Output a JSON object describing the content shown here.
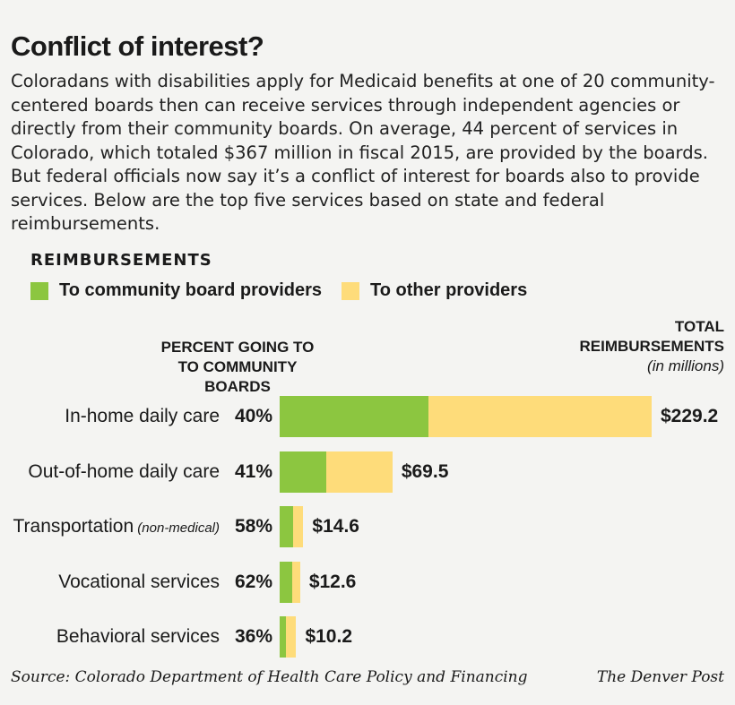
{
  "title": "Conflict of interest?",
  "intro": "Coloradans with disabilities apply for Medicaid benefits at one of 20 community-centered boards then can receive services through independent agencies or directly from their community boards. On average, 44 percent of services in Colorado, which totaled $367 million in fiscal 2015, are provided by the boards. But federal officials now say it’s a conflict of interest for boards also to provide services. Below are the top five services based on state and federal reimbursements.",
  "section_label": "REIMBURSEMENTS",
  "legend": {
    "community": "To community board providers",
    "other": "To other providers"
  },
  "headers": {
    "percent_line1": "PERCENT GOING TO",
    "percent_line2": "TO COMMUNITY BOARDS",
    "total_line1": "TOTAL",
    "total_line2": "REIMBURSEMENTS",
    "total_unit": "(in millions)"
  },
  "colors": {
    "community": "#8cc640",
    "other": "#fedc7a"
  },
  "chart_data": {
    "type": "bar",
    "orientation": "horizontal",
    "stacked": true,
    "categories": [
      "In-home daily care",
      "Out-of-home daily care",
      "Transportation",
      "Vocational services",
      "Behavioral services"
    ],
    "category_notes": [
      "",
      "",
      "(non-medical)",
      "",
      ""
    ],
    "totals": [
      229.2,
      69.5,
      14.6,
      12.6,
      10.2
    ],
    "total_labels": [
      "$229.2",
      "$69.5",
      "$14.6",
      "$12.6",
      "$10.2"
    ],
    "percent_to_community": [
      40,
      41,
      58,
      62,
      36
    ],
    "percent_labels": [
      "40%",
      "41%",
      "58%",
      "62%",
      "36%"
    ],
    "series": [
      {
        "name": "To community board providers",
        "values": [
          91.68,
          28.5,
          8.47,
          7.81,
          3.67
        ]
      },
      {
        "name": "To other providers",
        "values": [
          137.52,
          41.0,
          6.13,
          4.79,
          6.53
        ]
      }
    ]
  },
  "source": "Source: Colorado Department of Health Care Policy and Financing",
  "credit": "The Denver Post"
}
